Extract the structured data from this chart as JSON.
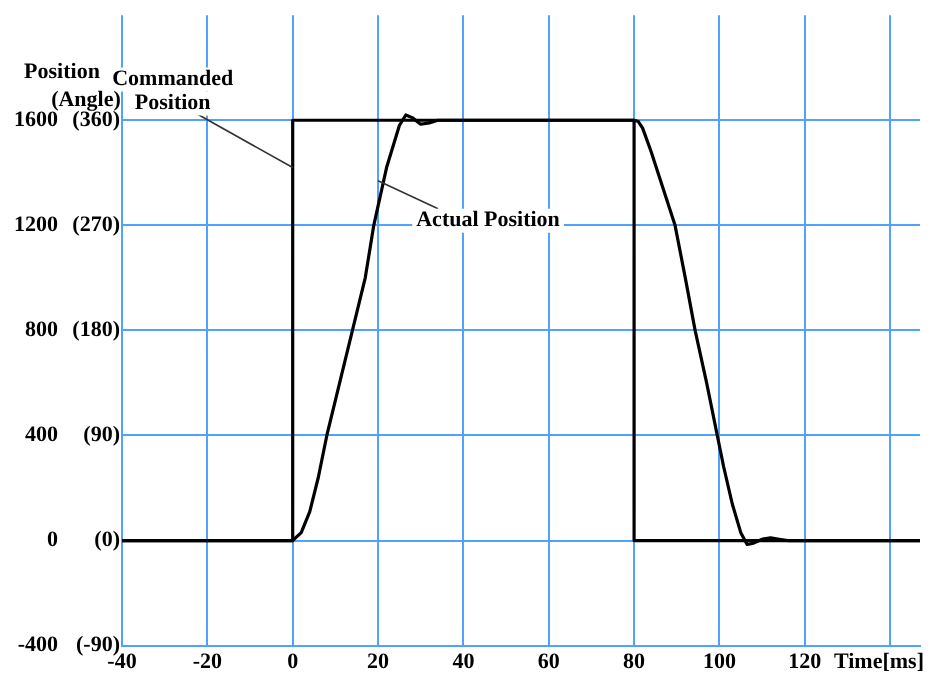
{
  "chart_data": {
    "type": "line",
    "xlabel": "Time[ms]",
    "ylabel": "Position",
    "xlim": [
      -40,
      147
    ],
    "xticks": [
      -40,
      -20,
      0,
      20,
      40,
      60,
      80,
      100,
      120,
      {
        "value": 140,
        "label": null
      }
    ],
    "ylim": [
      -400,
      2000
    ],
    "yticks": [
      -400,
      0,
      400,
      800,
      1200,
      1600
    ],
    "y2label": "(Angle)",
    "y2lim": [
      -90,
      450
    ],
    "y2ticks": [
      {
        "value": -90,
        "label": "(-90)"
      },
      {
        "value": 0,
        "label": "(0)"
      },
      {
        "value": 90,
        "label": "(90)"
      },
      {
        "value": 180,
        "label": "(180)"
      },
      {
        "value": 270,
        "label": "(270)"
      },
      {
        "value": 360,
        "label": "(360)"
      }
    ],
    "grid": true,
    "legend": false,
    "marker": "none",
    "line_style": "solid",
    "series": [
      {
        "color": "#000000",
        "x": [
          -40,
          0,
          0,
          80,
          80,
          147
        ],
        "values": [
          0,
          0,
          1600,
          1600,
          0,
          0
        ]
      },
      {
        "color": "#000000",
        "x": [
          -40,
          0,
          2,
          4,
          6,
          8,
          11,
          14,
          17,
          19,
          22,
          25,
          26.5,
          28,
          30,
          32,
          34,
          36,
          80,
          81,
          82,
          84,
          86,
          89.6,
          92,
          94.3,
          97,
          99.5,
          101,
          103,
          105,
          106.5,
          108,
          110,
          112,
          114,
          116,
          147
        ],
        "values": [
          0,
          0,
          30,
          110,
          240,
          400,
          600,
          800,
          1000,
          1200,
          1420,
          1580,
          1620,
          1610,
          1585,
          1590,
          1600,
          1600,
          1600,
          1595,
          1570,
          1480,
          1380,
          1200,
          1000,
          800,
          600,
          400,
          280,
          140,
          30,
          -15,
          -10,
          5,
          10,
          5,
          0,
          0
        ]
      }
    ],
    "annotations": [
      {
        "text": "Commanded Position",
        "x": 0,
        "y": 1420
      },
      {
        "text": "Actual Position",
        "x": 20,
        "y": 1370
      }
    ]
  }
}
